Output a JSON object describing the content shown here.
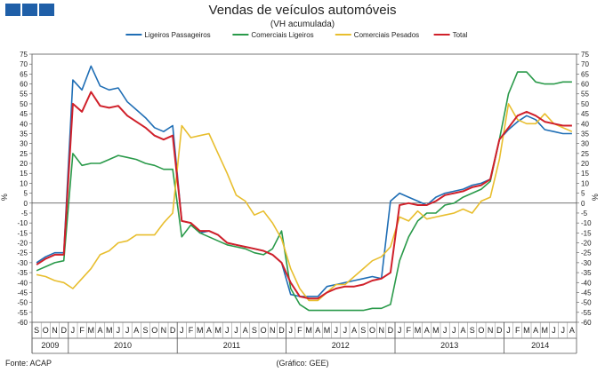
{
  "header": {
    "title": "Vendas de veículos automóveis",
    "subtitle": "(VH acumulada)"
  },
  "footer": {
    "source": "Fonte: ACAP",
    "credit": "(Gráfico: GEE)"
  },
  "logo_color": "#1f5fa8",
  "chart_data": {
    "type": "line",
    "ylim": [
      -60,
      75
    ],
    "ytick_step": 5,
    "ylabel_left": "%",
    "ylabel_right": "%",
    "legend_position": "top-center",
    "months": [
      "S",
      "O",
      "N",
      "D",
      "J",
      "F",
      "M",
      "A",
      "M",
      "J",
      "J",
      "A",
      "S",
      "O",
      "N",
      "D",
      "J",
      "F",
      "M",
      "A",
      "M",
      "J",
      "J",
      "A",
      "S",
      "O",
      "N",
      "D",
      "J",
      "F",
      "M",
      "A",
      "M",
      "J",
      "J",
      "A",
      "S",
      "O",
      "N",
      "D",
      "J",
      "F",
      "M",
      "A",
      "M",
      "J",
      "J",
      "A",
      "S",
      "O",
      "N",
      "D",
      "J",
      "F",
      "M",
      "A",
      "M",
      "J",
      "J",
      "A"
    ],
    "years": [
      {
        "label": "2009",
        "start": 0,
        "count": 4
      },
      {
        "label": "2010",
        "start": 4,
        "count": 12
      },
      {
        "label": "2011",
        "start": 16,
        "count": 12
      },
      {
        "label": "2012",
        "start": 28,
        "count": 12
      },
      {
        "label": "2013",
        "start": 40,
        "count": 12
      },
      {
        "label": "2014",
        "start": 52,
        "count": 8
      }
    ],
    "series": [
      {
        "name": "Ligeiros Passageiros",
        "color": "#1f6eb5",
        "values": [
          -30,
          -27,
          -25,
          -25,
          62,
          57,
          69,
          59,
          57,
          58,
          51,
          47,
          43,
          38,
          36,
          39,
          -9,
          -10,
          -15,
          -14,
          -16,
          -20,
          -21,
          -22,
          -23,
          -24,
          -26,
          -30,
          -46,
          -47,
          -47,
          -47,
          -42,
          -41,
          -40,
          -39,
          -38,
          -37,
          -38,
          1,
          5,
          3,
          1,
          -1,
          3,
          5,
          6,
          7,
          9,
          10,
          12,
          32,
          37,
          41,
          44,
          42,
          37,
          36,
          35,
          35
        ]
      },
      {
        "name": "Comerciais Ligeiros",
        "color": "#2a9a4a",
        "values": [
          -34,
          -32,
          -30,
          -29,
          25,
          19,
          20,
          20,
          22,
          24,
          23,
          22,
          20,
          19,
          17,
          17,
          -17,
          -11,
          -15,
          -17,
          -19,
          -21,
          -22,
          -23,
          -25,
          -26,
          -23,
          -14,
          -43,
          -51,
          -54,
          -54,
          -54,
          -54,
          -54,
          -54,
          -54,
          -53,
          -53,
          -51,
          -29,
          -17,
          -9,
          -5,
          -5,
          -1,
          0,
          3,
          5,
          7,
          11,
          32,
          55,
          66,
          66,
          61,
          60,
          60,
          61,
          61
        ]
      },
      {
        "name": "Comerciais Pesados",
        "color": "#e8be2e",
        "values": [
          -36,
          -37,
          -39,
          -40,
          -43,
          -38,
          -33,
          -26,
          -24,
          -20,
          -19,
          -16,
          -16,
          -16,
          -10,
          -5,
          39,
          33,
          34,
          35,
          25,
          15,
          4,
          1,
          -6,
          -4,
          -10,
          -18,
          -33,
          -43,
          -49,
          -49,
          -45,
          -41,
          -41,
          -37,
          -33,
          -29,
          -27,
          -22,
          -7,
          -9,
          -4,
          -8,
          -7,
          -6,
          -5,
          -3,
          -5,
          1,
          3,
          22,
          50,
          42,
          40,
          40,
          45,
          40,
          38,
          36
        ]
      },
      {
        "name": "Total",
        "color": "#d0202a",
        "values": [
          -31,
          -28,
          -26,
          -26,
          50,
          46,
          56,
          49,
          48,
          49,
          44,
          41,
          38,
          34,
          32,
          34,
          -9,
          -10,
          -14,
          -14,
          -16,
          -20,
          -21,
          -22,
          -23,
          -24,
          -26,
          -30,
          -40,
          -47,
          -48,
          -48,
          -45,
          -43,
          -42,
          -42,
          -41,
          -39,
          -38,
          -35,
          -1,
          0,
          -1,
          -1,
          1,
          4,
          5,
          6,
          8,
          9,
          12,
          32,
          38,
          44,
          46,
          44,
          41,
          40,
          39,
          39
        ]
      }
    ]
  }
}
